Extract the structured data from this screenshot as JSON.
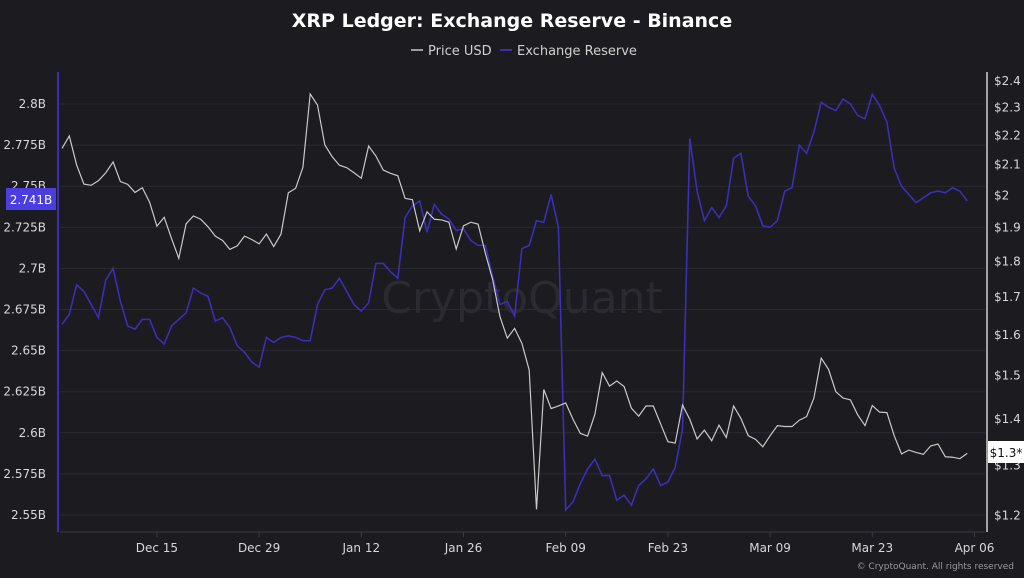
{
  "chart_data": {
    "type": "line",
    "title": "XRP Ledger: Exchange Reserve - Binance",
    "watermark": "CryptoQuant",
    "footer": "© CryptoQuant. All rights reserved",
    "legend": {
      "placement": "top-center",
      "entries": [
        "Price USD",
        "Exchange Reserve"
      ]
    },
    "grid": true,
    "x": [
      "Dec 02",
      "Dec 03",
      "Dec 04",
      "Dec 05",
      "Dec 06",
      "Dec 07",
      "Dec 08",
      "Dec 09",
      "Dec 10",
      "Dec 11",
      "Dec 12",
      "Dec 13",
      "Dec 14",
      "Dec 15",
      "Dec 16",
      "Dec 17",
      "Dec 18",
      "Dec 19",
      "Dec 20",
      "Dec 21",
      "Dec 22",
      "Dec 23",
      "Dec 24",
      "Dec 25",
      "Dec 26",
      "Dec 27",
      "Dec 28",
      "Dec 29",
      "Dec 30",
      "Dec 31",
      "Jan 01",
      "Jan 02",
      "Jan 03",
      "Jan 04",
      "Jan 05",
      "Jan 06",
      "Jan 07",
      "Jan 08",
      "Jan 09",
      "Jan 10",
      "Jan 11",
      "Jan 12",
      "Jan 13",
      "Jan 14",
      "Jan 15",
      "Jan 16",
      "Jan 17",
      "Jan 18",
      "Jan 19",
      "Jan 20",
      "Jan 21",
      "Jan 22",
      "Jan 23",
      "Jan 24",
      "Jan 25",
      "Jan 26",
      "Jan 27",
      "Jan 28",
      "Jan 29",
      "Jan 30",
      "Jan 31",
      "Feb 01",
      "Feb 02",
      "Feb 03",
      "Feb 04",
      "Feb 05",
      "Feb 06",
      "Feb 07",
      "Feb 08",
      "Feb 09",
      "Feb 10",
      "Feb 11",
      "Feb 12",
      "Feb 13",
      "Feb 14",
      "Feb 15",
      "Feb 16",
      "Feb 17",
      "Feb 18",
      "Feb 19",
      "Feb 20",
      "Feb 21",
      "Feb 22",
      "Feb 23",
      "Feb 24",
      "Feb 25",
      "Feb 26",
      "Feb 27",
      "Feb 28",
      "Mar 01",
      "Mar 02",
      "Mar 03",
      "Mar 04",
      "Mar 05",
      "Mar 06",
      "Mar 07",
      "Mar 08",
      "Mar 09",
      "Mar 10",
      "Mar 11",
      "Mar 12",
      "Mar 13",
      "Mar 14",
      "Mar 15",
      "Mar 16",
      "Mar 17",
      "Mar 18",
      "Mar 19",
      "Mar 20",
      "Mar 21",
      "Mar 22",
      "Mar 23",
      "Mar 24",
      "Mar 25",
      "Mar 26",
      "Mar 27",
      "Mar 28",
      "Mar 29",
      "Mar 30",
      "Mar 31",
      "Apr 01",
      "Apr 02",
      "Apr 03",
      "Apr 04",
      "Apr 05"
    ],
    "x_ticks": [
      "Dec 15",
      "Dec 29",
      "Jan 12",
      "Jan 26",
      "Feb 09",
      "Feb 23",
      "Mar 09",
      "Mar 23",
      "Apr 06"
    ],
    "y_left": {
      "unit": "XRP",
      "scale": "linear",
      "range": [
        2.545,
        2.81
      ],
      "ticks": [
        "2.55B",
        "2.575B",
        "2.6B",
        "2.625B",
        "2.65B",
        "2.675B",
        "2.7B",
        "2.725B",
        "2.75B",
        "2.775B",
        "2.8B"
      ],
      "tick_values": [
        2.55,
        2.575,
        2.6,
        2.625,
        2.65,
        2.675,
        2.7,
        2.725,
        2.75,
        2.775,
        2.8
      ],
      "current_label": "2.741B"
    },
    "y_right": {
      "unit": "USD",
      "scale": "log",
      "range": [
        1.18,
        2.4
      ],
      "ticks": [
        "$1.2",
        "$1.3",
        "$1.4",
        "$1.5",
        "$1.6",
        "$1.7",
        "$1.8",
        "$1.9",
        "$2",
        "$2.1",
        "$2.2",
        "$2.3",
        "$2.4"
      ],
      "tick_values": [
        1.2,
        1.3,
        1.4,
        1.5,
        1.6,
        1.7,
        1.8,
        1.9,
        2,
        2.1,
        2.2,
        2.3,
        2.4
      ],
      "current_label": "$1.3*"
    },
    "series": [
      {
        "name": "Price USD",
        "axis": "right",
        "color": "#c9c9c9",
        "values": [
          2.152,
          2.195,
          2.096,
          2.033,
          2.029,
          2.044,
          2.07,
          2.106,
          2.041,
          2.032,
          2.006,
          2.021,
          1.975,
          1.901,
          1.928,
          1.864,
          1.806,
          1.908,
          1.932,
          1.922,
          1.899,
          1.871,
          1.858,
          1.832,
          1.842,
          1.871,
          1.861,
          1.848,
          1.877,
          1.84,
          1.877,
          2.005,
          2.019,
          2.088,
          2.347,
          2.306,
          2.164,
          2.124,
          2.095,
          2.087,
          2.07,
          2.052,
          2.16,
          2.126,
          2.079,
          2.068,
          2.06,
          1.987,
          1.983,
          1.887,
          1.945,
          1.922,
          1.92,
          1.913,
          1.833,
          1.902,
          1.913,
          1.907,
          1.82,
          1.745,
          1.645,
          1.59,
          1.615,
          1.577,
          1.511,
          1.21,
          1.465,
          1.421,
          1.427,
          1.434,
          1.397,
          1.366,
          1.36,
          1.408,
          1.505,
          1.473,
          1.485,
          1.472,
          1.422,
          1.404,
          1.427,
          1.427,
          1.387,
          1.348,
          1.345,
          1.429,
          1.397,
          1.354,
          1.373,
          1.35,
          1.384,
          1.357,
          1.427,
          1.399,
          1.361,
          1.353,
          1.337,
          1.361,
          1.383,
          1.381,
          1.381,
          1.395,
          1.403,
          1.445,
          1.54,
          1.513,
          1.46,
          1.445,
          1.441,
          1.407,
          1.383,
          1.428,
          1.413,
          1.412,
          1.361,
          1.322,
          1.33,
          1.325,
          1.321,
          1.339,
          1.343,
          1.316,
          1.315,
          1.312,
          1.323
        ]
      },
      {
        "name": "Exchange Reserve",
        "axis": "left",
        "color": "#3a2fb5",
        "unit": "billion XRP",
        "values": [
          2.666,
          2.672,
          2.69,
          2.686,
          2.678,
          2.67,
          2.693,
          2.7,
          2.68,
          2.665,
          2.663,
          2.669,
          2.669,
          2.658,
          2.654,
          2.665,
          2.669,
          2.673,
          2.688,
          2.685,
          2.683,
          2.668,
          2.67,
          2.664,
          2.653,
          2.649,
          2.643,
          2.64,
          2.658,
          2.655,
          2.658,
          2.659,
          2.658,
          2.656,
          2.656,
          2.678,
          2.687,
          2.688,
          2.694,
          2.686,
          2.678,
          2.674,
          2.679,
          2.703,
          2.703,
          2.698,
          2.694,
          2.731,
          2.738,
          2.741,
          2.722,
          2.739,
          2.733,
          2.73,
          2.723,
          2.724,
          2.717,
          2.714,
          2.714,
          2.695,
          2.678,
          2.68,
          2.671,
          2.712,
          2.714,
          2.729,
          2.728,
          2.745,
          2.725,
          2.553,
          2.558,
          2.569,
          2.578,
          2.584,
          2.574,
          2.574,
          2.559,
          2.562,
          2.556,
          2.568,
          2.572,
          2.578,
          2.568,
          2.57,
          2.579,
          2.602,
          2.779,
          2.747,
          2.729,
          2.737,
          2.731,
          2.738,
          2.767,
          2.77,
          2.744,
          2.738,
          2.726,
          2.725,
          2.729,
          2.747,
          2.749,
          2.775,
          2.77,
          2.783,
          2.801,
          2.798,
          2.796,
          2.803,
          2.8,
          2.793,
          2.791,
          2.806,
          2.799,
          2.789,
          2.761,
          2.75,
          2.745,
          2.74,
          2.743,
          2.746,
          2.747,
          2.746,
          2.749,
          2.747,
          2.741
        ]
      }
    ],
    "colors": {
      "background": "#1b1b20",
      "grid": "#2a2a31",
      "left_axis": "#3a2fb5",
      "left_label_bg": "#4b3de0",
      "right_axis": "#d0d0d0"
    }
  }
}
